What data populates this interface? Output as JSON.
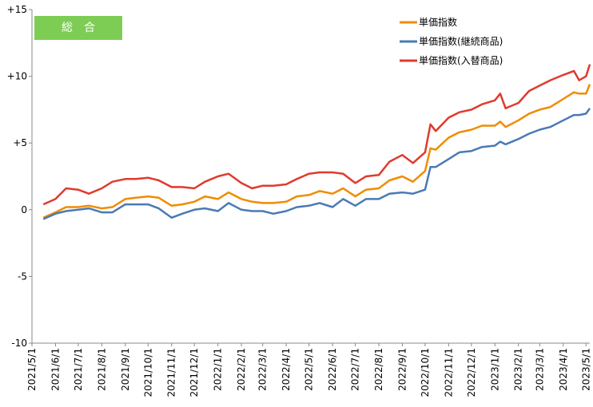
{
  "chart_data": {
    "type": "line",
    "title": "総　合",
    "x": [
      "2021/5/16",
      "2021/6/1",
      "2021/6/15",
      "2021/7/1",
      "2021/7/15",
      "2021/8/1",
      "2021/8/15",
      "2021/9/1",
      "2021/9/15",
      "2021/10/1",
      "2021/10/15",
      "2021/11/1",
      "2021/11/15",
      "2021/12/1",
      "2021/12/15",
      "2022/1/1",
      "2022/1/15",
      "2022/2/1",
      "2022/2/15",
      "2022/3/1",
      "2022/3/15",
      "2022/4/1",
      "2022/4/15",
      "2022/5/1",
      "2022/5/15",
      "2022/6/1",
      "2022/6/15",
      "2022/7/1",
      "2022/7/15",
      "2022/8/1",
      "2022/8/15",
      "2022/9/1",
      "2022/9/15",
      "2022/10/1",
      "2022/10/8",
      "2022/10/15",
      "2022/11/1",
      "2022/11/15",
      "2022/12/1",
      "2022/12/15",
      "2023/1/1",
      "2023/1/8",
      "2023/1/15",
      "2023/2/1",
      "2023/2/15",
      "2023/3/1",
      "2023/3/15",
      "2023/4/1",
      "2023/4/15",
      "2023/4/22",
      "2023/5/1",
      "2023/5/6"
    ],
    "series": [
      {
        "name": "単価指数",
        "color": "#f08c00",
        "values": [
          -0.6,
          -0.2,
          0.2,
          0.2,
          0.3,
          0.1,
          0.2,
          0.8,
          0.9,
          1.0,
          0.9,
          0.3,
          0.4,
          0.6,
          1.0,
          0.8,
          1.3,
          0.8,
          0.6,
          0.5,
          0.5,
          0.6,
          1.0,
          1.1,
          1.4,
          1.2,
          1.6,
          1.0,
          1.5,
          1.6,
          2.2,
          2.5,
          2.1,
          2.9,
          4.6,
          4.5,
          5.4,
          5.8,
          6.0,
          6.3,
          6.3,
          6.6,
          6.2,
          6.7,
          7.2,
          7.5,
          7.7,
          8.3,
          8.8,
          8.7,
          8.7,
          9.4
        ]
      },
      {
        "name": "単価指数(継続商品)",
        "color": "#4a7ab5",
        "values": [
          -0.7,
          -0.3,
          -0.1,
          0.0,
          0.1,
          -0.2,
          -0.2,
          0.4,
          0.4,
          0.4,
          0.1,
          -0.6,
          -0.3,
          0.0,
          0.1,
          -0.1,
          0.5,
          0.0,
          -0.1,
          -0.1,
          -0.3,
          -0.1,
          0.2,
          0.3,
          0.5,
          0.2,
          0.8,
          0.3,
          0.8,
          0.8,
          1.2,
          1.3,
          1.2,
          1.5,
          3.2,
          3.2,
          3.8,
          4.3,
          4.4,
          4.7,
          4.8,
          5.1,
          4.9,
          5.3,
          5.7,
          6.0,
          6.2,
          6.7,
          7.1,
          7.1,
          7.2,
          7.6
        ]
      },
      {
        "name": "単価指数(入替商品)",
        "color": "#e03a2e",
        "values": [
          0.4,
          0.8,
          1.6,
          1.5,
          1.2,
          1.6,
          2.1,
          2.3,
          2.3,
          2.4,
          2.2,
          1.7,
          1.7,
          1.6,
          2.1,
          2.5,
          2.7,
          2.0,
          1.6,
          1.8,
          1.8,
          1.9,
          2.3,
          2.7,
          2.8,
          2.8,
          2.7,
          2.0,
          2.5,
          2.6,
          3.6,
          4.1,
          3.5,
          4.3,
          6.4,
          5.9,
          6.9,
          7.3,
          7.5,
          7.9,
          8.2,
          8.7,
          7.6,
          8.0,
          8.9,
          9.3,
          9.7,
          10.1,
          10.4,
          9.7,
          10.0,
          10.9
        ]
      }
    ],
    "xlim": [
      "2021/5/1",
      "2023/5/6"
    ],
    "xticks": [
      "2021/5/1",
      "2021/6/1",
      "2021/7/1",
      "2021/8/1",
      "2021/9/1",
      "2021/10/1",
      "2021/11/1",
      "2021/12/1",
      "2022/1/1",
      "2022/2/1",
      "2022/3/1",
      "2022/4/1",
      "2022/5/1",
      "2022/6/1",
      "2022/7/1",
      "2022/8/1",
      "2022/9/1",
      "2022/10/1",
      "2022/11/1",
      "2022/12/1",
      "2023/1/1",
      "2023/2/1",
      "2023/3/1",
      "2023/4/1",
      "2023/5/1"
    ],
    "ylim": [
      -10,
      15
    ],
    "yticks": [
      -10,
      -5,
      0,
      {
        "value": 5,
        "label": "+5"
      },
      {
        "value": 10,
        "label": "+10"
      },
      {
        "value": 15,
        "label": "+15"
      }
    ],
    "legend": "top-right"
  }
}
